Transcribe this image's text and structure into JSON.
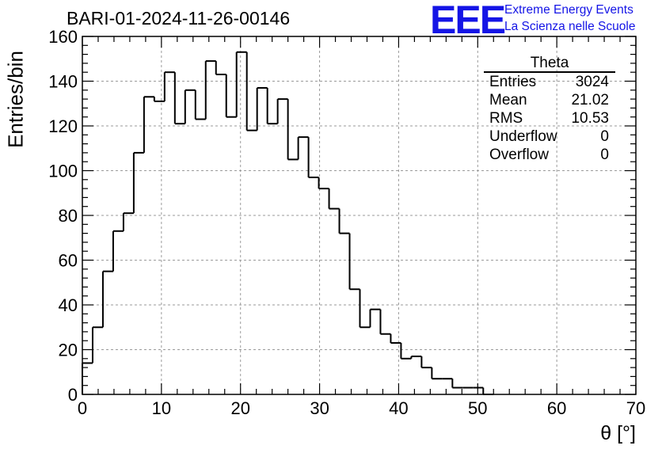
{
  "header": {
    "run_title": "BARI-01-2024-11-26-00146",
    "logo_text": "EEE",
    "brand_line1": "Extreme Energy Events",
    "brand_line2": "La Scienza nelle Scuole",
    "brand_color": "#1414e6"
  },
  "stats": {
    "title": "Theta",
    "rows": [
      {
        "label": "Entries",
        "value": "3024"
      },
      {
        "label": "Mean",
        "value": "21.02"
      },
      {
        "label": "RMS",
        "value": "10.53"
      },
      {
        "label": "Underflow",
        "value": "0"
      },
      {
        "label": "Overflow",
        "value": "0"
      }
    ]
  },
  "chart_data": {
    "type": "bar",
    "title": "BARI-01-2024-11-26-00146",
    "xlabel": "θ [°]",
    "ylabel": "Entries/bin",
    "xlim": [
      0,
      70
    ],
    "ylim": [
      0,
      160
    ],
    "bin_width": 1.3,
    "xticks": [
      0,
      10,
      20,
      30,
      40,
      50,
      60,
      70
    ],
    "yticks": [
      0,
      20,
      40,
      60,
      80,
      100,
      120,
      140,
      160
    ],
    "grid": true,
    "legend": "top-right stats box",
    "line_color": "#000000",
    "bins_start": [
      0,
      1.3,
      2.6,
      3.9,
      5.2,
      6.5,
      7.8,
      9.1,
      10.4,
      11.7,
      13.0,
      14.3,
      15.6,
      16.9,
      18.2,
      19.5,
      20.8,
      22.1,
      23.4,
      24.7,
      26.0,
      27.3,
      28.6,
      29.9,
      31.2,
      32.5,
      33.8,
      35.1,
      36.4,
      37.7,
      39.0,
      40.3,
      41.6,
      42.9,
      44.2,
      45.5,
      46.8,
      48.1,
      49.4,
      50.7,
      52.0,
      53.3
    ],
    "values": [
      14,
      30,
      55,
      73,
      81,
      108,
      133,
      131,
      144,
      121,
      136,
      123,
      149,
      143,
      124,
      153,
      118,
      137,
      121,
      132,
      105,
      115,
      97,
      92,
      83,
      72,
      47,
      30,
      38,
      27,
      23,
      16,
      17,
      12,
      7,
      7,
      3,
      3,
      3,
      0,
      0,
      0
    ]
  }
}
